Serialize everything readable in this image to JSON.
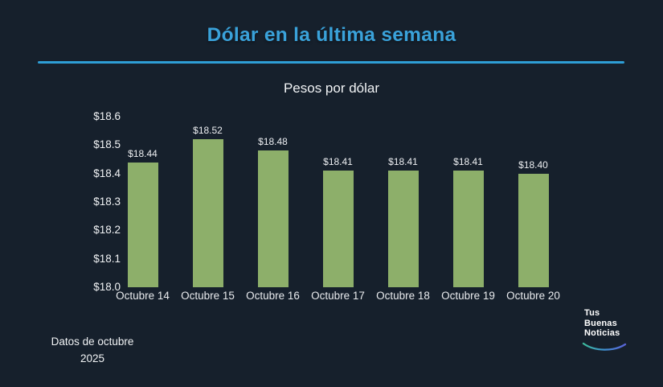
{
  "header": {
    "title": "Dólar en la última semana"
  },
  "chart_data": {
    "type": "bar",
    "title": "Dólar en la última semana",
    "subtitle": "Pesos por dólar",
    "categories": [
      "Octubre 14",
      "Octubre 15",
      "Octubre 16",
      "Octubre 17",
      "Octubre 18",
      "Octubre 19",
      "Octubre 20"
    ],
    "values": [
      18.44,
      18.52,
      18.48,
      18.41,
      18.41,
      18.41,
      18.4
    ],
    "value_labels": [
      "$18.44",
      "$18.52",
      "$18.48",
      "$18.41",
      "$18.41",
      "$18.41",
      "$18.40"
    ],
    "ylabel": "Pesos por dólar",
    "ylim": [
      18.0,
      18.6
    ],
    "ytick_step": 0.1,
    "ytick_labels": [
      "$18.6",
      "$18.5",
      "$18.4",
      "$18.3",
      "$18.2",
      "$18.1",
      "$18.0"
    ],
    "grid": false,
    "legend": null,
    "bar_color": "#8DAF6A"
  },
  "footer": {
    "line1": "Datos de octubre",
    "line2": "2025"
  },
  "logo": {
    "lines": [
      "Tus",
      "Buenas",
      "Noticias"
    ]
  },
  "colors": {
    "background": "#16202C",
    "accent_blue": "#3AA2DA",
    "divider_blue": "#2E9ED6",
    "bar_green": "#8DAF6A",
    "text": "#F1F3F5",
    "swoosh_start": "#3DBC9C",
    "swoosh_mid": "#3E8FD0",
    "swoosh_end": "#5A63D8"
  }
}
